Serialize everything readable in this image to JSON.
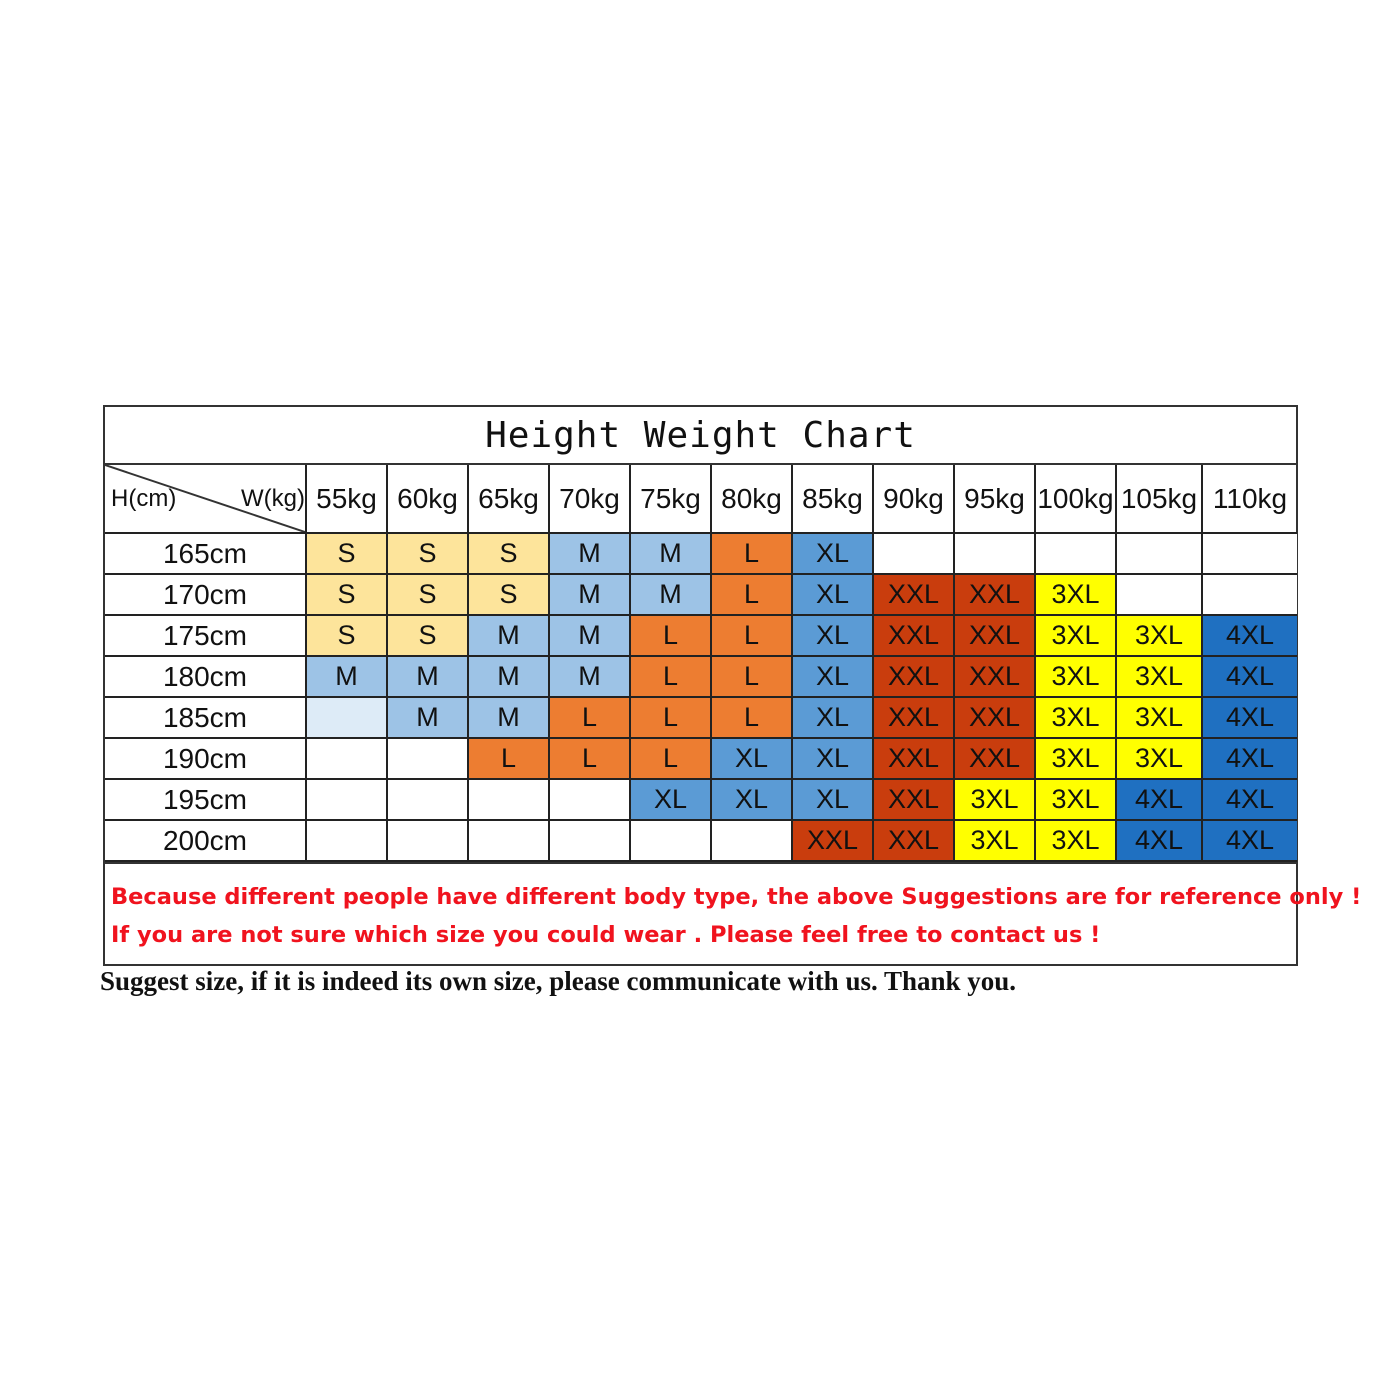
{
  "title": "Height Weight Chart",
  "corner": {
    "height_label": "H(cm)",
    "weight_label": "W(kg)"
  },
  "weights": [
    "55kg",
    "60kg",
    "65kg",
    "70kg",
    "75kg",
    "80kg",
    "85kg",
    "90kg",
    "95kg",
    "100kg",
    "105kg",
    "110kg"
  ],
  "size_colors": {
    "S": "#fde49b",
    "M": "#9dc3e6",
    "L": "#ed7d31",
    "XL": "#5b9bd5",
    "XXL": "#c93d0d",
    "3XL": "#ffff00",
    "4XL": "#1f70c1"
  },
  "rows": [
    {
      "height": "165cm",
      "cells": [
        "S",
        "S",
        "S",
        "M",
        "M",
        "L",
        "XL",
        "",
        "",
        "",
        "",
        ""
      ]
    },
    {
      "height": "170cm",
      "cells": [
        "S",
        "S",
        "S",
        "M",
        "M",
        "L",
        "XL",
        "XXL",
        "XXL",
        "3XL",
        "",
        ""
      ]
    },
    {
      "height": "175cm",
      "cells": [
        "S",
        "S",
        "M",
        "M",
        "L",
        "L",
        "XL",
        "XXL",
        "XXL",
        "3XL",
        "3XL",
        "4XL"
      ]
    },
    {
      "height": "180cm",
      "cells": [
        "M",
        "M",
        "M",
        "M",
        "L",
        "L",
        "XL",
        "XXL",
        "XXL",
        "3XL",
        "3XL",
        "4XL"
      ]
    },
    {
      "height": "185cm",
      "cells": [
        "",
        "M",
        "M",
        "L",
        "L",
        "L",
        "XL",
        "XXL",
        "XXL",
        "3XL",
        "3XL",
        "4XL"
      ],
      "blank_fills": {
        "0": "#ddebf7"
      }
    },
    {
      "height": "190cm",
      "cells": [
        "",
        "",
        "L",
        "L",
        "L",
        "XL",
        "XL",
        "XXL",
        "XXL",
        "3XL",
        "3XL",
        "4XL"
      ]
    },
    {
      "height": "195cm",
      "cells": [
        "",
        "",
        "",
        "",
        "XL",
        "XL",
        "XL",
        "XXL",
        "3XL",
        "3XL",
        "4XL",
        "4XL"
      ]
    },
    {
      "height": "200cm",
      "cells": [
        "",
        "",
        "",
        "",
        "",
        "",
        "XXL",
        "XXL",
        "3XL",
        "3XL",
        "4XL",
        "4XL"
      ]
    }
  ],
  "notes": [
    "Because different people have different body type, the above Suggestions are for reference only !",
    "If you are not sure which size you could wear . Please feel free to contact us !"
  ],
  "footer": "Suggest size, if it is indeed its own size, please communicate with us. Thank you."
}
